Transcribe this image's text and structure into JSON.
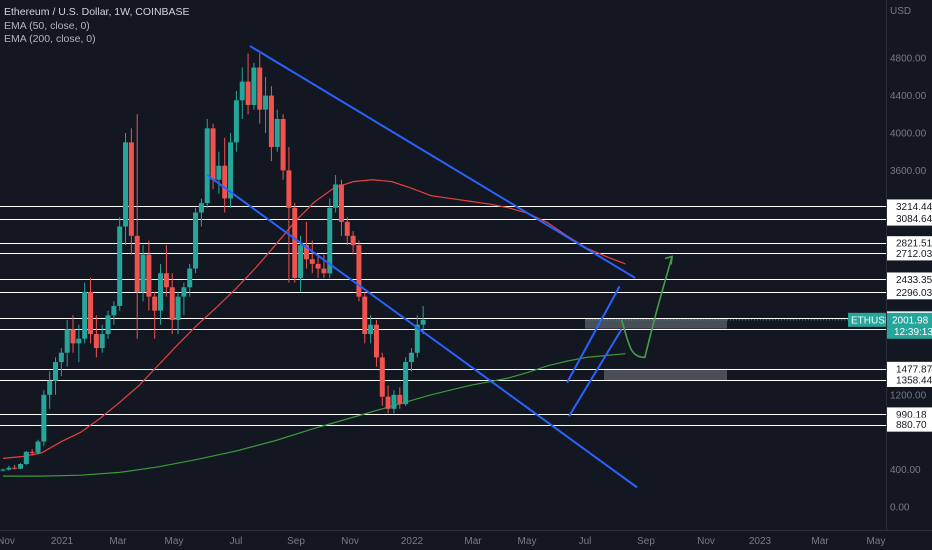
{
  "header": {
    "title": "Ethereum / U.S. Dollar, 1W, COINBASE",
    "indicators": [
      "EMA (50, close, 0)",
      "EMA (200, close, 0)"
    ]
  },
  "price_axis": {
    "unit": "USD",
    "ticks": [
      "4800.00",
      "4400.00",
      "4000.00",
      "3600.00",
      "1200.00",
      "400.00",
      "0.00"
    ]
  },
  "time_axis": {
    "ticks": [
      "Nov",
      "2021",
      "Mar",
      "May",
      "Jul",
      "Sep",
      "Nov",
      "2022",
      "Mar",
      "May",
      "Jul",
      "Sep",
      "Nov",
      "2023",
      "Mar",
      "May"
    ]
  },
  "levels": [
    "3214.44",
    "3084.64",
    "2821.51",
    "2712.03",
    "2433.35",
    "2296.03",
    "2017.57",
    "1908.18",
    "1477.87",
    "1358.44",
    "990.18",
    "880.70"
  ],
  "price_label": {
    "symbol": "ETHUSD",
    "price": "2001.98",
    "countdown": "12:39:13"
  },
  "colors": {
    "background": "#131722",
    "up": "#26a69a",
    "down": "#ef5350",
    "ema50": "#e8413e",
    "ema200": "#3d9a3b",
    "channel": "#2962ff",
    "level_line": "#ffffff",
    "zone": "#787b86",
    "projection": "#43a047"
  },
  "chart_data": {
    "type": "candlestick",
    "title": "Ethereum / U.S. Dollar, 1W, COINBASE",
    "xlabel": "",
    "ylabel": "USD",
    "ylim": [
      0,
      5000
    ],
    "grid": false,
    "series": [
      {
        "name": "EMA (50, close, 0)",
        "values": [
          [
            0,
            520
          ],
          [
            10,
            540
          ],
          [
            20,
            580
          ],
          [
            30,
            700
          ],
          [
            40,
            800
          ],
          [
            50,
            950
          ],
          [
            60,
            1120
          ],
          [
            70,
            1300
          ],
          [
            80,
            1520
          ],
          [
            90,
            1740
          ],
          [
            100,
            1950
          ],
          [
            110,
            2140
          ],
          [
            120,
            2340
          ],
          [
            130,
            2560
          ],
          [
            140,
            2800
          ],
          [
            150,
            3050
          ],
          [
            160,
            3260
          ],
          [
            170,
            3410
          ],
          [
            180,
            3480
          ],
          [
            190,
            3500
          ],
          [
            200,
            3480
          ],
          [
            210,
            3410
          ],
          [
            220,
            3330
          ],
          [
            230,
            3300
          ],
          [
            240,
            3270
          ],
          [
            250,
            3240
          ],
          [
            260,
            3200
          ],
          [
            270,
            3140
          ],
          [
            280,
            3040
          ],
          [
            290,
            2900
          ],
          [
            300,
            2770
          ],
          [
            310,
            2680
          ],
          [
            320,
            2600
          ]
        ]
      },
      {
        "name": "EMA (200, close, 0)",
        "values": [
          [
            0,
            330
          ],
          [
            20,
            330
          ],
          [
            40,
            340
          ],
          [
            60,
            370
          ],
          [
            80,
            430
          ],
          [
            100,
            510
          ],
          [
            120,
            600
          ],
          [
            140,
            710
          ],
          [
            160,
            840
          ],
          [
            180,
            960
          ],
          [
            200,
            1080
          ],
          [
            220,
            1200
          ],
          [
            240,
            1300
          ],
          [
            260,
            1380
          ],
          [
            270,
            1440
          ],
          [
            280,
            1510
          ],
          [
            290,
            1560
          ],
          [
            300,
            1600
          ],
          [
            310,
            1620
          ],
          [
            320,
            1640
          ]
        ]
      },
      {
        "name": "Resistance channel upper",
        "values": [
          [
            127,
            4930
          ],
          [
            325,
            2450
          ]
        ]
      },
      {
        "name": "Support channel lower",
        "values": [
          [
            105,
            3550
          ],
          [
            326,
            210
          ]
        ]
      },
      {
        "name": "Rising channel lower",
        "values": [
          [
            291,
            970
          ],
          [
            318,
            1900
          ]
        ]
      },
      {
        "name": "Rising channel upper",
        "values": [
          [
            290,
            1330
          ],
          [
            317,
            2360
          ]
        ]
      },
      {
        "name": "Projection",
        "values": [
          [
            318,
            2000
          ],
          [
            322,
            1750
          ],
          [
            330,
            1600
          ],
          [
            336,
            2100
          ],
          [
            344,
            2680
          ]
        ]
      }
    ],
    "candles": [
      [
        0,
        390,
        410,
        380,
        400
      ],
      [
        3,
        400,
        440,
        390,
        420
      ],
      [
        6,
        420,
        450,
        400,
        410
      ],
      [
        9,
        410,
        470,
        405,
        460
      ],
      [
        12,
        460,
        600,
        450,
        590
      ],
      [
        15,
        590,
        620,
        550,
        580
      ],
      [
        18,
        580,
        720,
        560,
        700
      ],
      [
        21,
        700,
        1250,
        650,
        1200
      ],
      [
        24,
        1200,
        1450,
        1050,
        1350
      ],
      [
        27,
        1350,
        1600,
        1200,
        1550
      ],
      [
        30,
        1550,
        1700,
        1400,
        1650
      ],
      [
        33,
        1650,
        2000,
        1500,
        1900
      ],
      [
        36,
        1900,
        2050,
        1650,
        1750
      ],
      [
        39,
        1750,
        1950,
        1550,
        1800
      ],
      [
        42,
        1800,
        2400,
        1750,
        2300
      ],
      [
        45,
        2300,
        2450,
        1750,
        1850
      ],
      [
        48,
        1850,
        2050,
        1600,
        1700
      ],
      [
        51,
        1700,
        1950,
        1650,
        1850
      ],
      [
        54,
        1850,
        2100,
        1800,
        2050
      ],
      [
        57,
        2050,
        2200,
        1950,
        2150
      ],
      [
        60,
        2150,
        3100,
        2100,
        3000
      ],
      [
        63,
        3000,
        4000,
        2800,
        3900
      ],
      [
        66,
        3900,
        4050,
        2700,
        2900
      ],
      [
        69,
        2900,
        4200,
        1800,
        2300
      ],
      [
        72,
        2300,
        2800,
        2200,
        2700
      ],
      [
        75,
        2700,
        2850,
        2100,
        2250
      ],
      [
        78,
        2250,
        2300,
        1800,
        2100
      ],
      [
        81,
        2100,
        2600,
        1950,
        2500
      ],
      [
        84,
        2500,
        2800,
        2250,
        2350
      ],
      [
        87,
        2350,
        2500,
        1850,
        2000
      ],
      [
        90,
        2000,
        2300,
        1850,
        2250
      ],
      [
        93,
        2250,
        2400,
        2050,
        2350
      ],
      [
        96,
        2350,
        2600,
        2250,
        2550
      ],
      [
        99,
        2550,
        3200,
        2500,
        3150
      ],
      [
        102,
        3150,
        3300,
        3000,
        3250
      ],
      [
        105,
        3250,
        4150,
        3200,
        4050
      ],
      [
        108,
        4050,
        4100,
        3400,
        3500
      ],
      [
        111,
        3500,
        3800,
        3350,
        3650
      ],
      [
        114,
        3650,
        3950,
        3150,
        3300
      ],
      [
        117,
        3300,
        4000,
        3200,
        3900
      ],
      [
        120,
        3900,
        4450,
        3800,
        4350
      ],
      [
        123,
        4350,
        4700,
        4150,
        4550
      ],
      [
        126,
        4550,
        4850,
        4200,
        4300
      ],
      [
        129,
        4300,
        4750,
        4250,
        4700
      ],
      [
        132,
        4700,
        4850,
        4100,
        4250
      ],
      [
        135,
        4250,
        4600,
        4000,
        4400
      ],
      [
        138,
        4400,
        4500,
        3700,
        3850
      ],
      [
        141,
        3850,
        4250,
        3800,
        4150
      ],
      [
        144,
        4150,
        4200,
        3500,
        3600
      ],
      [
        147,
        3600,
        3850,
        2400,
        3200
      ],
      [
        150,
        3200,
        3250,
        2400,
        2450
      ],
      [
        153,
        2450,
        2900,
        2300,
        2800
      ],
      [
        156,
        2800,
        3050,
        2550,
        2650
      ],
      [
        159,
        2650,
        2850,
        2500,
        2600
      ],
      [
        162,
        2600,
        2700,
        2450,
        2550
      ],
      [
        165,
        2550,
        2700,
        2450,
        2500
      ],
      [
        168,
        2500,
        3300,
        2450,
        3200
      ],
      [
        171,
        3200,
        3550,
        3150,
        3450
      ],
      [
        174,
        3450,
        3500,
        2900,
        3050
      ],
      [
        177,
        3050,
        3100,
        2800,
        2900
      ],
      [
        180,
        2900,
        2950,
        2700,
        2800
      ],
      [
        183,
        2800,
        2850,
        2200,
        2250
      ],
      [
        186,
        2250,
        2300,
        1750,
        1850
      ],
      [
        189,
        1850,
        2050,
        1750,
        1950
      ],
      [
        192,
        1950,
        2000,
        1500,
        1600
      ],
      [
        195,
        1600,
        1650,
        1080,
        1180
      ],
      [
        198,
        1180,
        1300,
        1000,
        1050
      ],
      [
        201,
        1050,
        1250,
        1000,
        1200
      ],
      [
        204,
        1200,
        1280,
        1050,
        1100
      ],
      [
        207,
        1100,
        1600,
        1080,
        1550
      ],
      [
        210,
        1550,
        1700,
        1450,
        1650
      ],
      [
        213,
        1650,
        2050,
        1600,
        1950
      ],
      [
        216,
        1950,
        2150,
        1850,
        2002
      ]
    ]
  }
}
